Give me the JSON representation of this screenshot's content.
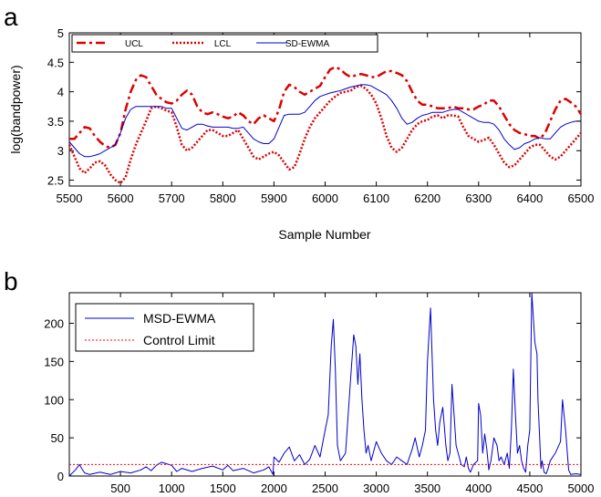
{
  "chart_data": [
    {
      "panel_label": "a",
      "type": "line",
      "xlabel": "Sample Number",
      "ylabel": "log(bandpower)",
      "xlim": [
        5500,
        6500
      ],
      "ylim": [
        2.4,
        5
      ],
      "xticks": [
        5500,
        5600,
        5700,
        5800,
        5900,
        6000,
        6100,
        6200,
        6300,
        6400,
        6500
      ],
      "yticks": [
        2.5,
        3,
        3.5,
        4,
        4.5,
        5
      ],
      "legend": "top-left",
      "series": [
        {
          "name": "UCL",
          "style": "dash-dot",
          "color": "#dd0000",
          "x": [
            5500,
            5510,
            5520,
            5530,
            5540,
            5550,
            5560,
            5570,
            5580,
            5590,
            5600,
            5610,
            5620,
            5630,
            5640,
            5650,
            5660,
            5670,
            5680,
            5690,
            5700,
            5710,
            5720,
            5730,
            5740,
            5750,
            5760,
            5770,
            5780,
            5790,
            5800,
            5810,
            5820,
            5830,
            5840,
            5850,
            5860,
            5870,
            5880,
            5890,
            5900,
            5910,
            5920,
            5930,
            5940,
            5950,
            5960,
            5970,
            5980,
            5990,
            6000,
            6010,
            6020,
            6030,
            6040,
            6050,
            6060,
            6070,
            6080,
            6090,
            6100,
            6110,
            6120,
            6130,
            6140,
            6150,
            6160,
            6170,
            6180,
            6190,
            6200,
            6210,
            6220,
            6230,
            6240,
            6250,
            6260,
            6270,
            6280,
            6290,
            6300,
            6310,
            6320,
            6330,
            6340,
            6350,
            6360,
            6370,
            6380,
            6390,
            6400,
            6410,
            6420,
            6430,
            6440,
            6450,
            6460,
            6470,
            6480,
            6490,
            6500
          ],
          "y": [
            3.2,
            3.2,
            3.3,
            3.4,
            3.38,
            3.25,
            3.15,
            3.08,
            3.05,
            3.1,
            3.3,
            3.7,
            4.0,
            4.2,
            4.28,
            4.25,
            4.1,
            3.95,
            3.88,
            3.82,
            3.8,
            3.85,
            3.95,
            4.02,
            3.95,
            3.75,
            3.65,
            3.62,
            3.65,
            3.62,
            3.58,
            3.55,
            3.58,
            3.65,
            3.6,
            3.5,
            3.45,
            3.55,
            3.6,
            3.55,
            3.5,
            3.7,
            4.0,
            4.12,
            4.08,
            4.0,
            3.95,
            4.0,
            4.05,
            4.1,
            4.25,
            4.38,
            4.42,
            4.38,
            4.3,
            4.25,
            4.28,
            4.3,
            4.28,
            4.25,
            4.25,
            4.3,
            4.35,
            4.35,
            4.32,
            4.28,
            4.18,
            4.0,
            3.85,
            3.78,
            3.78,
            3.75,
            3.72,
            3.72,
            3.72,
            3.75,
            3.72,
            3.72,
            3.7,
            3.7,
            3.75,
            3.78,
            3.85,
            3.85,
            3.75,
            3.6,
            3.45,
            3.35,
            3.3,
            3.28,
            3.25,
            3.25,
            3.2,
            3.3,
            3.5,
            3.7,
            3.85,
            3.88,
            3.82,
            3.75,
            3.62
          ]
        },
        {
          "name": "LCL",
          "style": "dotted",
          "color": "#dd0000",
          "x": [
            5500,
            5510,
            5520,
            5530,
            5540,
            5550,
            5560,
            5570,
            5580,
            5590,
            5600,
            5610,
            5620,
            5630,
            5640,
            5650,
            5660,
            5670,
            5680,
            5690,
            5700,
            5710,
            5720,
            5730,
            5740,
            5750,
            5760,
            5770,
            5780,
            5790,
            5800,
            5810,
            5820,
            5830,
            5840,
            5850,
            5860,
            5870,
            5880,
            5890,
            5900,
            5910,
            5920,
            5930,
            5940,
            5950,
            5960,
            5970,
            5980,
            5990,
            6000,
            6010,
            6020,
            6030,
            6040,
            6050,
            6060,
            6070,
            6080,
            6090,
            6100,
            6110,
            6120,
            6130,
            6140,
            6150,
            6160,
            6170,
            6180,
            6190,
            6200,
            6210,
            6220,
            6230,
            6240,
            6250,
            6260,
            6270,
            6280,
            6290,
            6300,
            6310,
            6320,
            6330,
            6340,
            6350,
            6360,
            6370,
            6380,
            6390,
            6400,
            6410,
            6420,
            6430,
            6440,
            6450,
            6460,
            6470,
            6480,
            6490,
            6500
          ],
          "y": [
            3.1,
            2.9,
            2.7,
            2.62,
            2.7,
            2.8,
            2.82,
            2.75,
            2.6,
            2.5,
            2.45,
            2.55,
            2.85,
            3.1,
            3.3,
            3.5,
            3.72,
            3.75,
            3.72,
            3.68,
            3.65,
            3.4,
            3.1,
            3.0,
            3.05,
            3.15,
            3.25,
            3.35,
            3.35,
            3.3,
            3.25,
            3.25,
            3.3,
            3.35,
            3.2,
            3.05,
            2.9,
            2.85,
            2.9,
            2.95,
            2.98,
            2.92,
            2.8,
            2.68,
            2.72,
            2.95,
            3.2,
            3.4,
            3.55,
            3.65,
            3.75,
            3.85,
            3.92,
            3.98,
            4.0,
            4.02,
            4.08,
            4.1,
            4.05,
            3.95,
            3.8,
            3.55,
            3.25,
            3.05,
            2.98,
            3.05,
            3.2,
            3.35,
            3.45,
            3.5,
            3.52,
            3.58,
            3.6,
            3.55,
            3.6,
            3.6,
            3.58,
            3.4,
            3.25,
            3.2,
            3.15,
            3.18,
            3.22,
            3.1,
            2.95,
            2.8,
            2.72,
            2.75,
            2.85,
            2.95,
            3.05,
            3.1,
            3.1,
            3.0,
            2.9,
            2.85,
            2.9,
            3.0,
            3.1,
            3.2,
            3.3
          ]
        },
        {
          "name": "SD-EWMA",
          "style": "solid",
          "color": "#0000cc",
          "x": [
            5500,
            5510,
            5520,
            5530,
            5540,
            5550,
            5560,
            5570,
            5580,
            5590,
            5600,
            5610,
            5620,
            5630,
            5640,
            5650,
            5660,
            5670,
            5680,
            5690,
            5700,
            5710,
            5720,
            5730,
            5740,
            5750,
            5760,
            5770,
            5780,
            5790,
            5800,
            5810,
            5820,
            5830,
            5840,
            5850,
            5860,
            5870,
            5880,
            5890,
            5900,
            5910,
            5920,
            5930,
            5940,
            5950,
            5960,
            5970,
            5980,
            5990,
            6000,
            6010,
            6020,
            6030,
            6040,
            6050,
            6060,
            6070,
            6080,
            6090,
            6100,
            6110,
            6120,
            6130,
            6140,
            6150,
            6160,
            6170,
            6180,
            6190,
            6200,
            6210,
            6220,
            6230,
            6240,
            6250,
            6260,
            6270,
            6280,
            6290,
            6300,
            6310,
            6320,
            6330,
            6340,
            6350,
            6360,
            6370,
            6380,
            6390,
            6400,
            6410,
            6420,
            6430,
            6440,
            6450,
            6460,
            6470,
            6480,
            6490,
            6500
          ],
          "y": [
            3.15,
            3.05,
            2.95,
            2.9,
            2.9,
            2.92,
            2.95,
            3.0,
            3.05,
            3.1,
            3.3,
            3.55,
            3.7,
            3.75,
            3.75,
            3.75,
            3.75,
            3.75,
            3.75,
            3.72,
            3.72,
            3.55,
            3.38,
            3.35,
            3.4,
            3.45,
            3.45,
            3.42,
            3.4,
            3.4,
            3.4,
            3.4,
            3.38,
            3.38,
            3.4,
            3.3,
            3.2,
            3.15,
            3.12,
            3.12,
            3.2,
            3.4,
            3.6,
            3.62,
            3.62,
            3.62,
            3.65,
            3.75,
            3.85,
            3.92,
            3.95,
            3.98,
            4.0,
            4.02,
            4.05,
            4.08,
            4.1,
            4.12,
            4.12,
            4.1,
            4.05,
            4.0,
            3.95,
            3.85,
            3.72,
            3.55,
            3.45,
            3.48,
            3.55,
            3.6,
            3.62,
            3.65,
            3.65,
            3.65,
            3.68,
            3.7,
            3.7,
            3.65,
            3.6,
            3.55,
            3.5,
            3.48,
            3.48,
            3.45,
            3.35,
            3.2,
            3.1,
            3.02,
            3.05,
            3.12,
            3.15,
            3.2,
            3.22,
            3.2,
            3.2,
            3.3,
            3.4,
            3.45,
            3.48,
            3.5,
            3.5
          ]
        }
      ]
    },
    {
      "panel_label": "b",
      "type": "line",
      "xlabel": "",
      "ylabel": "",
      "xlim": [
        0,
        5000
      ],
      "ylim": [
        0,
        240
      ],
      "xticks": [
        500,
        1000,
        1500,
        2000,
        2500,
        3000,
        3500,
        4000,
        4500,
        5000
      ],
      "yticks": [
        0,
        50,
        100,
        150,
        200
      ],
      "legend": "top-left",
      "series": [
        {
          "name": "MSD-EWMA",
          "style": "solid",
          "color": "#0000cc",
          "x": [
            0,
            60,
            100,
            120,
            150,
            200,
            300,
            400,
            500,
            600,
            700,
            750,
            800,
            850,
            900,
            1000,
            1050,
            1100,
            1200,
            1300,
            1400,
            1500,
            1550,
            1600,
            1700,
            1800,
            1900,
            1950,
            1990,
            2000,
            2050,
            2100,
            2150,
            2200,
            2250,
            2300,
            2350,
            2400,
            2450,
            2500,
            2530,
            2560,
            2580,
            2600,
            2620,
            2650,
            2700,
            2750,
            2780,
            2800,
            2820,
            2840,
            2860,
            2880,
            2900,
            2920,
            2950,
            3000,
            3050,
            3100,
            3150,
            3200,
            3250,
            3300,
            3350,
            3380,
            3420,
            3450,
            3480,
            3500,
            3530,
            3560,
            3580,
            3600,
            3620,
            3650,
            3680,
            3700,
            3720,
            3740,
            3760,
            3780,
            3800,
            3830,
            3860,
            3880,
            3900,
            3920,
            3950,
            3990,
            4000,
            4020,
            4040,
            4060,
            4080,
            4100,
            4120,
            4150,
            4180,
            4200,
            4220,
            4250,
            4280,
            4300,
            4320,
            4340,
            4360,
            4380,
            4400,
            4420,
            4440,
            4460,
            4480,
            4500,
            4520,
            4550,
            4570,
            4580,
            4600,
            4610,
            4620,
            4640,
            4660,
            4680,
            4700,
            4750,
            4800,
            4820,
            4850,
            4880,
            4900,
            4950,
            5000
          ],
          "y": [
            0,
            8,
            15,
            10,
            4,
            2,
            5,
            2,
            6,
            4,
            8,
            12,
            7,
            14,
            18,
            14,
            6,
            10,
            6,
            10,
            13,
            8,
            14,
            7,
            10,
            4,
            8,
            12,
            2,
            25,
            18,
            30,
            38,
            20,
            28,
            15,
            22,
            40,
            25,
            60,
            80,
            170,
            205,
            140,
            40,
            20,
            30,
            130,
            185,
            170,
            120,
            160,
            100,
            60,
            30,
            40,
            20,
            45,
            30,
            20,
            15,
            25,
            20,
            15,
            35,
            50,
            25,
            40,
            60,
            150,
            220,
            100,
            60,
            40,
            70,
            90,
            40,
            20,
            30,
            120,
            80,
            40,
            30,
            15,
            12,
            25,
            10,
            5,
            15,
            20,
            95,
            80,
            30,
            55,
            35,
            8,
            20,
            50,
            40,
            20,
            25,
            15,
            30,
            10,
            60,
            140,
            80,
            30,
            40,
            20,
            10,
            5,
            40,
            60,
            240,
            175,
            160,
            100,
            40,
            10,
            20,
            5,
            3,
            10,
            20,
            30,
            45,
            100,
            60,
            8,
            2,
            3,
            2
          ]
        },
        {
          "name": "Control Limit",
          "style": "dotted",
          "color": "#ff0000",
          "x": [
            0,
            5000
          ],
          "y": [
            15,
            15
          ]
        }
      ]
    }
  ]
}
